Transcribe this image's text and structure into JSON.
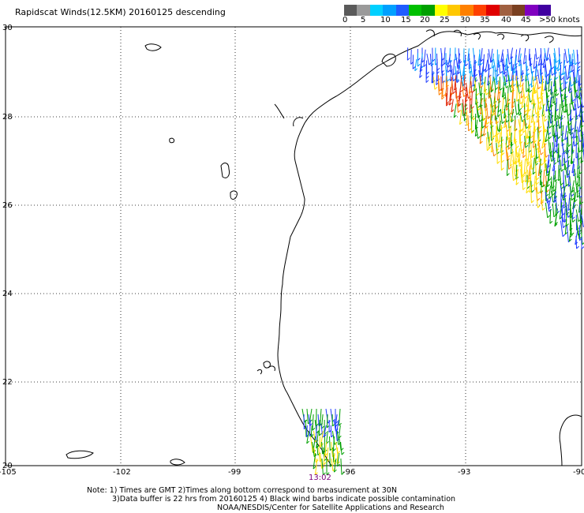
{
  "title": "Rapidscat Winds(12.5KM) 20160125 descending",
  "legend": {
    "colors": [
      "#5a5a5a",
      "#9a9a9a",
      "#00d0ff",
      "#00a0ff",
      "#1f5cff",
      "#00c000",
      "#00a000",
      "#ffff00",
      "#ffc800",
      "#ff8000",
      "#ff4000",
      "#e00000",
      "#a06040",
      "#7a4020",
      "#8000c0",
      "#4000a0"
    ],
    "labels": [
      "0",
      "5",
      "10",
      "15",
      "20",
      "25",
      "30",
      "35",
      "40",
      "45",
      ">50 knots"
    ]
  },
  "map": {
    "lat_labels": [
      "30",
      "28",
      "26",
      "24",
      "22",
      "20"
    ],
    "lon_labels": [
      "-105",
      "-102",
      "-99",
      "-96",
      "-93",
      "-90"
    ],
    "time_label": "13:02",
    "barb_colors": {
      "blue": "#1f3cff",
      "cyan": "#00a0ff",
      "green": "#00a000",
      "yellow": "#ffdd00",
      "orange": "#ff8000",
      "red": "#e02000"
    }
  },
  "notes": {
    "line1": "Note: 1) Times are GMT 2)Times along bottom correspond to measurement at 30N",
    "line2": "3)Data buffer is 22 hrs from 20160125 4) Black wind barbs indicate possible contamination",
    "line3": "NOAA/NESDIS/Center for Satellite Applications and Research"
  }
}
